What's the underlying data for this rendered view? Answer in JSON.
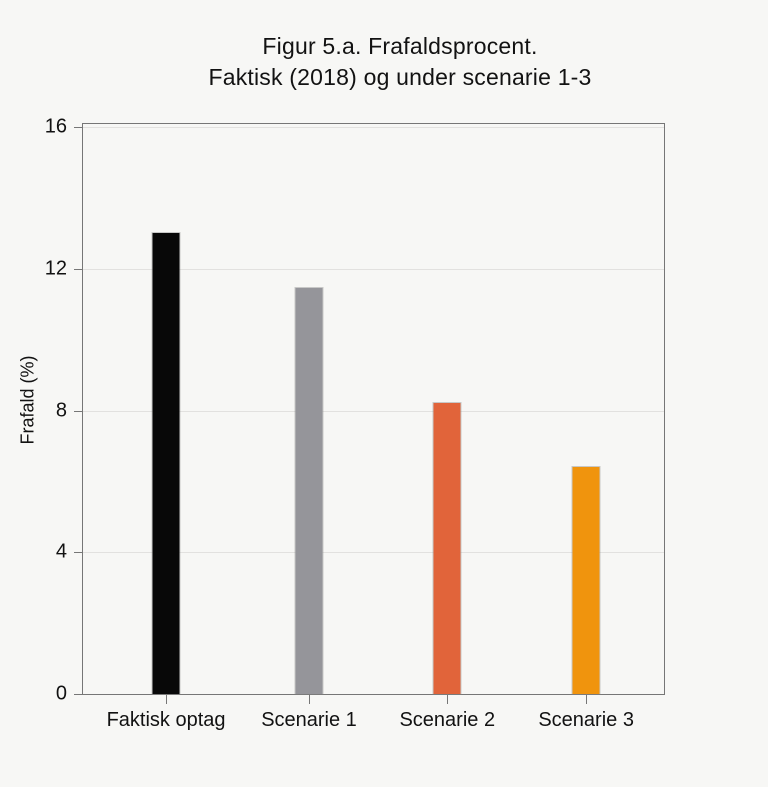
{
  "page": {
    "background": "#f7f7f5"
  },
  "chart": {
    "title_line1": "Figur 5.a. Frafaldsprocent.",
    "title_line2": "Faktisk (2018) og under scenarie 1-3"
  },
  "chart_data": {
    "type": "bar",
    "title": "Figur 5.a. Frafaldsprocent. Faktisk (2018) og under scenarie 1-3",
    "categories": [
      "Faktisk optag",
      "Scenarie 1",
      "Scenarie 2",
      "Scenarie 3"
    ],
    "values": [
      13.0,
      11.45,
      8.2,
      6.4
    ],
    "bar_colors": [
      "#080808",
      "#95959a",
      "#e1643a",
      "#f0940d"
    ],
    "xlabel": "",
    "ylabel": "Frafald (%)",
    "ylim": [
      0,
      16
    ],
    "yticks": [
      0,
      4,
      8,
      12,
      16
    ],
    "grid": true,
    "legend": "none",
    "axis_color": "#767676",
    "gridline_color": "#e2e1df",
    "text_color": "#121212"
  }
}
